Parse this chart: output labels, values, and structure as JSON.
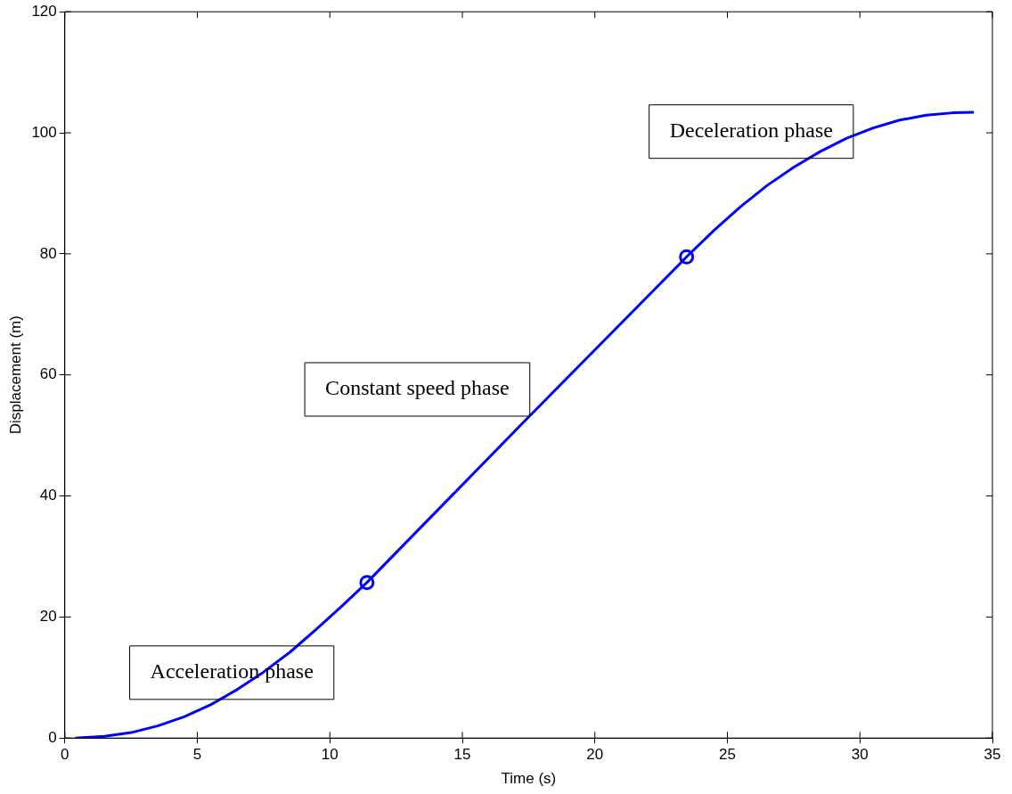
{
  "chart_data": {
    "type": "line",
    "xlabel": "Time (s)",
    "ylabel": "Displacement (m)",
    "xlim": [
      0,
      35
    ],
    "xticks": [
      0,
      5,
      10,
      15,
      20,
      25,
      30,
      35
    ],
    "ylim": [
      0,
      120
    ],
    "yticks": [
      0,
      20,
      40,
      60,
      80,
      100,
      120
    ],
    "grid": false,
    "legend": false,
    "line_style": "solid",
    "series": [
      {
        "color": "#0000ff",
        "marker": "none",
        "x": [
          0.4,
          1.5,
          2.5,
          3.5,
          4.5,
          5.5,
          6.5,
          7.5,
          8.5,
          9.5,
          10.5,
          11.4,
          17.4,
          23.46,
          24.5,
          25.5,
          26.5,
          27.5,
          28.5,
          29.5,
          30.5,
          31.5,
          32.5,
          33.5,
          34.3
        ],
        "values": [
          0,
          0.3,
          0.9,
          2,
          3.5,
          5.5,
          8,
          10.9,
          14.2,
          18,
          22,
          25.7,
          52.6,
          79.5,
          83.9,
          87.8,
          91.3,
          94.3,
          96.9,
          99.1,
          100.8,
          102.1,
          102.9,
          103.3,
          103.4
        ]
      },
      {
        "type": "scatter",
        "color": "#0000ff",
        "marker": "circle",
        "x": [
          11.4,
          23.46
        ],
        "values": [
          25.7,
          79.5
        ]
      }
    ],
    "annotations": [
      "Acceleration phase",
      "Constant speed phase",
      "Deceleration phase"
    ]
  }
}
